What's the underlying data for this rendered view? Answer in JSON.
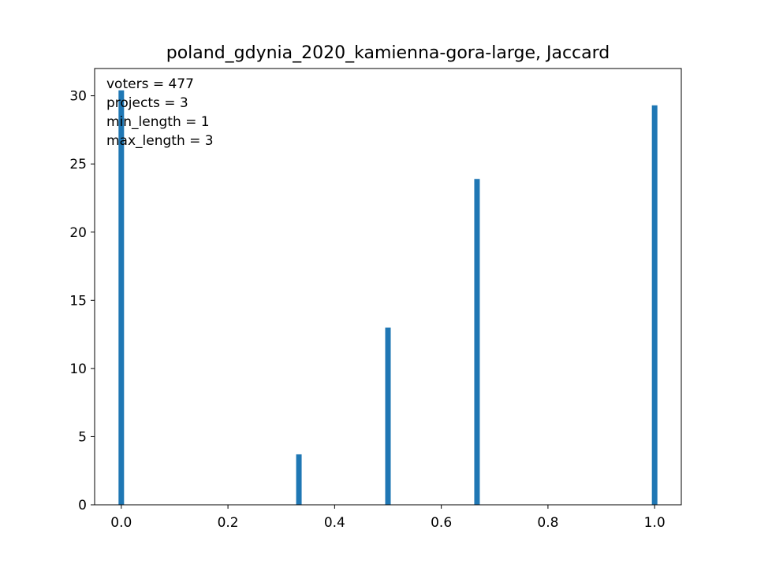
{
  "chart_data": {
    "type": "bar",
    "title": "poland_gdynia_2020_kamienna-gora-large, Jaccard",
    "xlabel": "",
    "ylabel": "",
    "x": [
      0.0,
      0.333,
      0.5,
      0.667,
      1.0
    ],
    "values": [
      30.4,
      3.7,
      13.0,
      23.9,
      29.3
    ],
    "xlim": [
      -0.05,
      1.05
    ],
    "ylim": [
      0,
      32
    ],
    "xticks": [
      0.0,
      0.2,
      0.4,
      0.6,
      0.8,
      1.0
    ],
    "xtick_labels": [
      "0.0",
      "0.2",
      "0.4",
      "0.6",
      "0.8",
      "1.0"
    ],
    "yticks": [
      0,
      5,
      10,
      15,
      20,
      25,
      30
    ],
    "ytick_labels": [
      "0",
      "5",
      "10",
      "15",
      "20",
      "25",
      "30"
    ],
    "bar_color": "#1f77b4",
    "grid": false,
    "annotations": [
      "voters = 477",
      "projects = 3",
      "min_length = 1",
      "max_length = 3"
    ]
  }
}
